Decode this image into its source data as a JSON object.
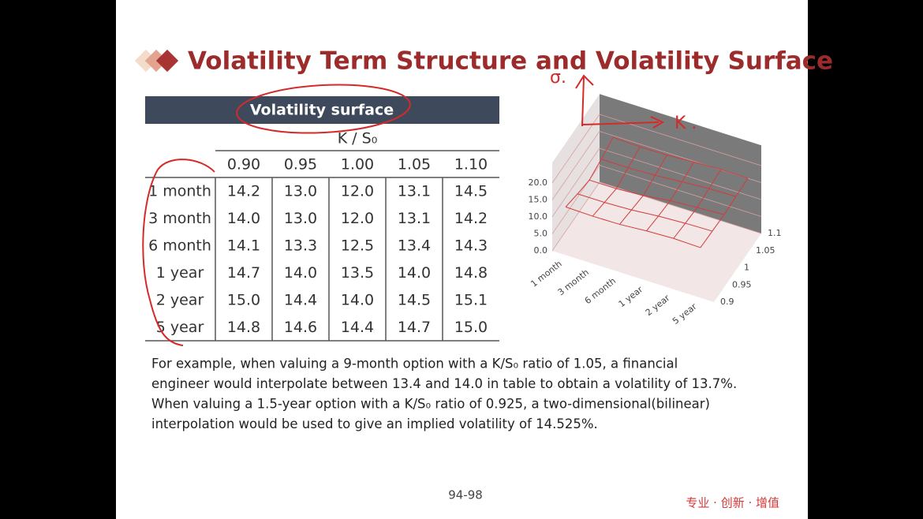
{
  "title": "Volatility Term Structure and Volatility Surface",
  "table": {
    "caption": "Volatility surface",
    "column_axis": "K / S₀",
    "columns": [
      "0.90",
      "0.95",
      "1.00",
      "1.05",
      "1.10"
    ],
    "rows": [
      {
        "label": "1 month",
        "values": [
          "14.2",
          "13.0",
          "12.0",
          "13.1",
          "14.5"
        ]
      },
      {
        "label": "3 month",
        "values": [
          "14.0",
          "13.0",
          "12.0",
          "13.1",
          "14.2"
        ]
      },
      {
        "label": "6 month",
        "values": [
          "14.1",
          "13.3",
          "12.5",
          "13.4",
          "14.3"
        ]
      },
      {
        "label": "1 year",
        "values": [
          "14.7",
          "14.0",
          "13.5",
          "14.0",
          "14.8"
        ]
      },
      {
        "label": "2 year",
        "values": [
          "15.0",
          "14.4",
          "14.0",
          "14.5",
          "15.1"
        ]
      },
      {
        "label": "5 year",
        "values": [
          "14.8",
          "14.6",
          "14.4",
          "14.7",
          "15.0"
        ]
      }
    ]
  },
  "chart": {
    "zticks": [
      {
        "value": 0,
        "label": "0.0"
      },
      {
        "value": 5,
        "label": "5.0"
      },
      {
        "value": 10,
        "label": "10.0"
      },
      {
        "value": 15,
        "label": "15.0"
      },
      {
        "value": 20,
        "label": "20.0"
      }
    ],
    "categories": [
      "1 month",
      "3 month",
      "6 month",
      "1 year",
      "2 year",
      "5 year"
    ],
    "depth_ticks": [
      0.9,
      0.95,
      1,
      1.05,
      1.1
    ]
  },
  "paragraph": [
    "For example, when valuing a 9-month option with a K/S₀ ratio of 1.05, a financial",
    "engineer would interpolate between 13.4 and 14.0 in table to obtain a volatility of 13.7%.",
    "When valuing a 1.5-year option with a K/S₀ ratio of 0.925, a two-dimensional(bilinear)",
    "interpolation would be used to give an implied volatility of 14.525%."
  ],
  "annotations": [
    "σ.",
    "K ."
  ],
  "footer": {
    "page": "94-98",
    "slogan": "专业 · 创新 · 增值"
  }
}
